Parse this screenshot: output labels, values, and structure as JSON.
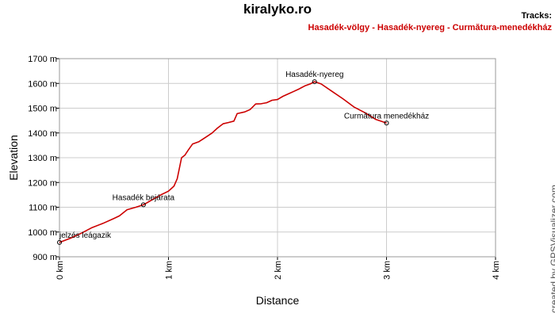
{
  "header": {
    "title": "kiralyko.ro",
    "tracks_label": "Tracks:",
    "track_name": "Hasadék-völgy - Hasadék-nyereg - Curmătura-menedékház"
  },
  "credit": "created by GPSVisualizer.com",
  "colors": {
    "line": "#cc0000",
    "grid": "#cccccc",
    "track_label": "#cc0000"
  },
  "chart_data": {
    "type": "line",
    "title": "kiralyko.ro",
    "xlabel": "Distance",
    "ylabel": "Elevation",
    "xlim": [
      0,
      4
    ],
    "ylim": [
      900,
      1700
    ],
    "x_ticks": [
      0,
      1,
      2,
      3,
      4
    ],
    "x_tick_labels": [
      "0 km",
      "1 km",
      "2 km",
      "3 km",
      "4 km"
    ],
    "y_ticks": [
      900,
      1000,
      1100,
      1200,
      1300,
      1400,
      1500,
      1600,
      1700
    ],
    "y_tick_labels": [
      "900 m",
      "1000 m",
      "1100 m",
      "1200 m",
      "1300 m",
      "1400 m",
      "1500 m",
      "1600 m",
      "1700 m"
    ],
    "grid": true,
    "series": [
      {
        "name": "Hasadék-völgy - Hasadék-nyereg - Curmătura-menedékház",
        "x": [
          0.0,
          0.1,
          0.2,
          0.3,
          0.4,
          0.5,
          0.55,
          0.62,
          0.7,
          0.77,
          0.85,
          0.93,
          1.0,
          1.05,
          1.08,
          1.12,
          1.15,
          1.18,
          1.22,
          1.28,
          1.35,
          1.4,
          1.45,
          1.5,
          1.55,
          1.6,
          1.63,
          1.7,
          1.75,
          1.8,
          1.85,
          1.9,
          1.95,
          2.0,
          2.05,
          2.1,
          2.15,
          2.2,
          2.25,
          2.3,
          2.34,
          2.4,
          2.5,
          2.6,
          2.7,
          2.8,
          2.9,
          3.0
        ],
        "y": [
          958,
          975,
          995,
          1018,
          1035,
          1055,
          1065,
          1090,
          1100,
          1110,
          1130,
          1150,
          1165,
          1185,
          1215,
          1300,
          1310,
          1330,
          1355,
          1365,
          1385,
          1400,
          1420,
          1437,
          1442,
          1448,
          1478,
          1485,
          1495,
          1517,
          1518,
          1522,
          1532,
          1535,
          1548,
          1558,
          1568,
          1578,
          1590,
          1598,
          1607,
          1598,
          1568,
          1538,
          1505,
          1482,
          1455,
          1440
        ]
      }
    ],
    "waypoints": [
      {
        "label": "jelzés leágazik",
        "x": 0.0,
        "y": 958
      },
      {
        "label": "Hasadék bejárata",
        "x": 0.77,
        "y": 1110
      },
      {
        "label": "Hasadék-nyereg",
        "x": 2.34,
        "y": 1607
      },
      {
        "label": "Curmătura menedékház",
        "x": 3.0,
        "y": 1440
      }
    ]
  }
}
